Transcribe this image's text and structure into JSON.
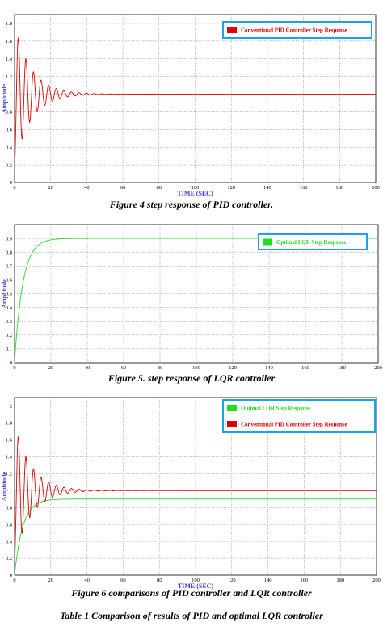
{
  "header_fragment": "",
  "figures": [
    {
      "caption": "Figure 4   step response of PID controller.",
      "ylabel": "Amplitude",
      "xlabel": "TIME (SEC)",
      "legend": [
        {
          "label": "Conventional  PID Controller Step Response",
          "color": "#e00000"
        }
      ]
    },
    {
      "caption": "Figure 5. step response of LQR controller",
      "ylabel": "Amplitude",
      "xlabel": "",
      "legend": [
        {
          "label": "Optimal LQR Step Response",
          "color": "#22dd22"
        }
      ]
    },
    {
      "caption": "Figure 6 comparisons of PID controller and LQR controller",
      "ylabel": "Amplitude",
      "xlabel": "TIME (SEC)",
      "legend": [
        {
          "label": "Optimal LQR Step Response",
          "color": "#22dd22"
        },
        {
          "label": "Conventional  PID Controller Step Response",
          "color": "#e00000"
        }
      ]
    }
  ],
  "table_caption": "Table 1 Comparison of results of PID and optimal LQR controller",
  "chart_data": [
    {
      "type": "line",
      "xlabel": "TIME (SEC)",
      "ylabel": "Amplitude",
      "xlim": [
        0,
        200
      ],
      "ylim": [
        0,
        1.9
      ],
      "xticks": [
        0,
        20,
        40,
        60,
        80,
        100,
        120,
        140,
        160,
        180,
        200
      ],
      "yticks": [
        0,
        0.2,
        0.4,
        0.6,
        0.8,
        1,
        1.2,
        1.4,
        1.6,
        1.8
      ],
      "grid": true,
      "legend_position": "top-right",
      "series": [
        {
          "name": "Conventional  PID Controller Step Response",
          "color": "#e00000",
          "model": {
            "kind": "damped-oscillation",
            "final": 1.0,
            "overshoot": 0.8,
            "decay": 0.11,
            "period": 4.2
          }
        }
      ]
    },
    {
      "type": "line",
      "xlabel": "",
      "ylabel": "Amplitude",
      "xlim": [
        0,
        200
      ],
      "ylim": [
        0,
        1
      ],
      "xticks": [
        0,
        20,
        40,
        60,
        80,
        100,
        120,
        140,
        160,
        180,
        200
      ],
      "yticks": [
        0,
        0.1,
        0.2,
        0.3,
        0.4,
        0.5,
        0.6,
        0.7,
        0.8,
        0.9
      ],
      "grid": true,
      "legend_position": "top-right",
      "series": [
        {
          "name": "Optimal LQR Step Response",
          "color": "#22dd22",
          "model": {
            "kind": "first-order",
            "final": 0.9,
            "tau": 4.5
          }
        }
      ]
    },
    {
      "type": "line",
      "xlabel": "TIME (SEC)",
      "ylabel": "Amplitude",
      "xlim": [
        0,
        200
      ],
      "ylim": [
        0,
        2.1
      ],
      "xticks": [
        0,
        20,
        40,
        60,
        80,
        100,
        120,
        140,
        160,
        180,
        200
      ],
      "yticks": [
        0,
        0.2,
        0.4,
        0.6,
        0.8,
        1,
        1.2,
        1.4,
        1.6,
        1.8,
        2
      ],
      "grid": true,
      "legend_position": "top-right",
      "series": [
        {
          "name": "Optimal LQR Step Response",
          "color": "#22dd22",
          "model": {
            "kind": "first-order",
            "final": 0.9,
            "tau": 4.5
          }
        },
        {
          "name": "Conventional  PID Controller Step Response",
          "color": "#e00000",
          "model": {
            "kind": "damped-oscillation",
            "final": 1.0,
            "overshoot": 0.8,
            "decay": 0.11,
            "period": 4.2
          }
        }
      ]
    }
  ]
}
